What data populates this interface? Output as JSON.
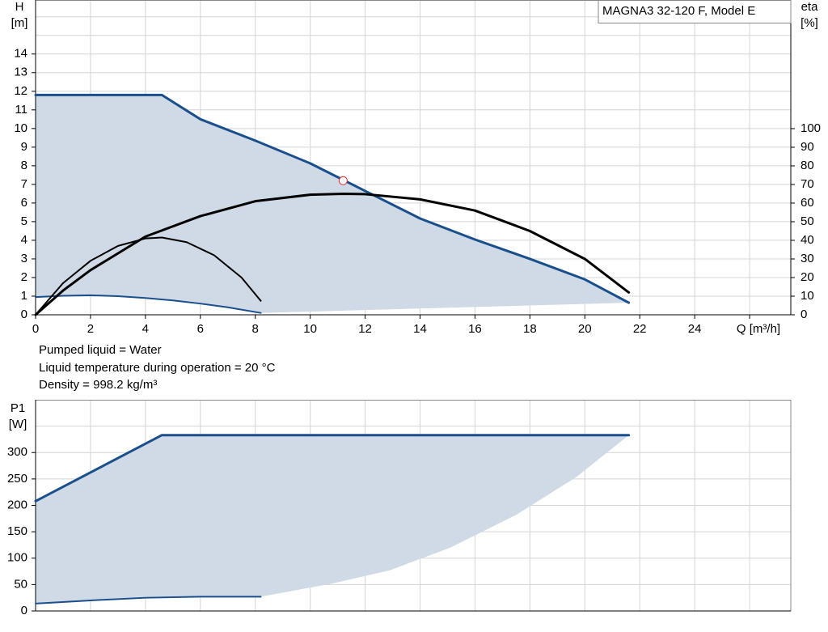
{
  "chart_data": [
    {
      "type": "line",
      "y_label": "H",
      "y_unit": "[m]",
      "y2_label": "eta",
      "y2_unit": "[%]",
      "x_label": "Q [m³/h]",
      "legend_text": "MAGNA3 32-120 F, Model E",
      "annotations": [
        "Pumped liquid = Water",
        "Liquid temperature during operation = 20 °C",
        "Density = 998.2 kg/m³"
      ],
      "xlim": [
        0,
        27.5
      ],
      "xticks": [
        0,
        2,
        4,
        6,
        8,
        10,
        12,
        14,
        16,
        18,
        20,
        22,
        24,
        {
          "value": 26,
          "label": null
        }
      ],
      "ylim": [
        0,
        16.9
      ],
      "yticks": [
        0,
        1,
        2,
        3,
        4,
        5,
        6,
        7,
        8,
        9,
        10,
        11,
        12,
        13,
        14,
        {
          "value": 15,
          "label": null
        },
        {
          "value": 16,
          "label": null
        }
      ],
      "y2lim": [
        0,
        169.1
      ],
      "y2ticks": [
        0,
        10,
        20,
        30,
        40,
        50,
        60,
        70,
        80,
        90,
        100
      ],
      "grid": true,
      "area_color": "#cfdae6",
      "series": [
        {
          "color": "#1a4f8b",
          "width": 3,
          "x": [
            0,
            4.6,
            6,
            8,
            10,
            12,
            14,
            16,
            18,
            20,
            21.6
          ],
          "values": [
            11.8,
            11.8,
            10.5,
            9.35,
            8.13,
            6.65,
            5.17,
            4.04,
            3.0,
            1.9,
            0.65
          ]
        },
        {
          "color": "#1a4f8b",
          "width": 2,
          "x": [
            0,
            1,
            2,
            3,
            4,
            5,
            6,
            7,
            8.2
          ],
          "values": [
            0.95,
            1.02,
            1.05,
            1.0,
            0.9,
            0.77,
            0.6,
            0.4,
            0.1
          ]
        },
        {
          "color": "#000000",
          "width": 3,
          "axis": "y2",
          "x": [
            0,
            1,
            2,
            4,
            6,
            8,
            10,
            11.2,
            12,
            14,
            16,
            18,
            20,
            21.6
          ],
          "values": [
            0,
            13,
            24,
            42,
            53,
            61,
            64.5,
            65,
            64.8,
            62,
            56,
            45,
            30,
            12
          ]
        },
        {
          "color": "#000000",
          "width": 2,
          "axis": "y2",
          "x": [
            0,
            1,
            2,
            3,
            4,
            4.6,
            5.5,
            6.5,
            7.5,
            8.2
          ],
          "values": [
            0,
            17,
            29,
            37,
            41,
            41.5,
            39,
            32,
            20,
            7.5
          ]
        }
      ],
      "duty_point": {
        "x": 11.2,
        "y": 7.2,
        "color": "#e03030"
      }
    },
    {
      "type": "line",
      "y_label": "P1",
      "y_unit": "[W]",
      "xlim": [
        0,
        27.5
      ],
      "xgrid": [
        0,
        2,
        4,
        6,
        8,
        10,
        12,
        14,
        16,
        18,
        20,
        22,
        24,
        26
      ],
      "ylim": [
        0,
        400
      ],
      "yticks": [
        0,
        50,
        100,
        150,
        200,
        250,
        300,
        {
          "value": 350,
          "label": null
        }
      ],
      "grid": true,
      "area_color": "#cfdae6",
      "series": [
        {
          "color": "#1a4f8b",
          "width": 3,
          "x": [
            0,
            4.6,
            21.6
          ],
          "values": [
            208,
            333,
            333
          ]
        },
        {
          "color": "#1a4f8b",
          "width": 2,
          "x": [
            0,
            2,
            4,
            6,
            8.2
          ],
          "values": [
            14,
            20,
            25,
            27,
            27
          ]
        }
      ],
      "area_edge": {
        "x": [
          8.2,
          10.8,
          12.9,
          15.1,
          17.5,
          19.7,
          21.6
        ],
        "values": [
          27,
          52,
          77,
          120,
          182,
          254,
          333
        ]
      }
    }
  ]
}
